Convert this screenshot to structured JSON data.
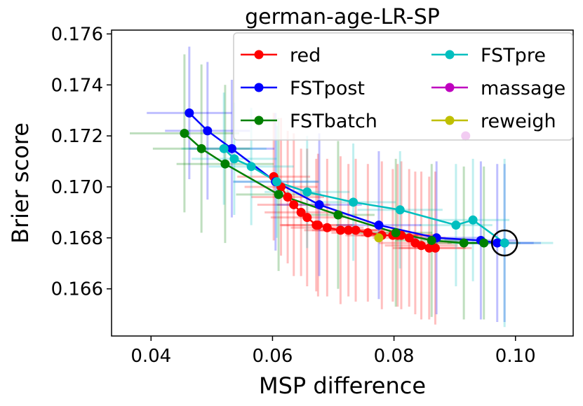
{
  "chart_data": {
    "type": "line",
    "title": "german-age-LR-SP",
    "xlabel": "MSP difference",
    "ylabel": "Brier score",
    "xlim": [
      0.0335,
      0.1095
    ],
    "ylim": [
      0.16415,
      0.17615
    ],
    "xticks": [
      0.04,
      0.06,
      0.08,
      0.1
    ],
    "xtick_labels": [
      "0.04",
      "0.06",
      "0.08",
      "0.10"
    ],
    "yticks": [
      0.166,
      0.168,
      0.17,
      0.172,
      0.174,
      0.176
    ],
    "ytick_labels": [
      "0.166",
      "0.168",
      "0.170",
      "0.172",
      "0.174",
      "0.176"
    ],
    "legend_position": "top-right",
    "series": [
      {
        "name": "red",
        "color": "#ff0000",
        "x": [
          0.0602,
          0.0614,
          0.0625,
          0.0635,
          0.0647,
          0.0657,
          0.0672,
          0.0675,
          0.069,
          0.0712,
          0.0725,
          0.0737,
          0.0757,
          0.078,
          0.0798,
          0.0806,
          0.0812,
          0.0825,
          0.0835,
          0.0845,
          0.0858,
          0.0868
        ],
        "y": [
          0.1704,
          0.17,
          0.1696,
          0.1693,
          0.169,
          0.1688,
          0.1685,
          0.1685,
          0.1684,
          0.1683,
          0.1683,
          0.1683,
          0.1682,
          0.1681,
          0.1681,
          0.1681,
          0.1681,
          0.168,
          0.1678,
          0.1677,
          0.1676,
          0.1676
        ],
        "xerr": [
          0.006,
          0.006,
          0.006,
          0.006,
          0.006,
          0.006,
          0.006,
          0.006,
          0.006,
          0.006,
          0.006,
          0.006,
          0.006,
          0.006,
          0.006,
          0.006,
          0.006,
          0.006,
          0.006,
          0.006,
          0.006,
          0.006
        ],
        "yerr": [
          0.0025,
          0.0027,
          0.0026,
          0.0028,
          0.0025,
          0.0027,
          0.0026,
          0.0028,
          0.0027,
          0.0029,
          0.0026,
          0.0028,
          0.0027,
          0.0029,
          0.0026,
          0.0028,
          0.0029,
          0.0027,
          0.0028,
          0.0029,
          0.0028,
          0.003
        ]
      },
      {
        "name": "FSTpost",
        "color": "#0000ff",
        "x": [
          0.0463,
          0.0493,
          0.0533,
          0.0605,
          0.0677,
          0.0775,
          0.087,
          0.0943,
          0.097,
          0.0982
        ],
        "y": [
          0.1729,
          0.1722,
          0.1715,
          0.1702,
          0.1693,
          0.1685,
          0.168,
          0.1679,
          0.1678,
          0.1678
        ],
        "xerr": [
          0.007,
          0.007,
          0.007,
          0.007,
          0.007,
          0.007,
          0.007,
          0.006,
          0.006,
          0.006
        ],
        "yerr": [
          0.0026,
          0.0027,
          0.0027,
          0.0027,
          0.0028,
          0.0029,
          0.003,
          0.0031,
          0.0031,
          0.0031
        ]
      },
      {
        "name": "FSTbatch",
        "color": "#008000",
        "x": [
          0.0455,
          0.0483,
          0.0522,
          0.061,
          0.0708,
          0.0803,
          0.0862,
          0.0915,
          0.0948
        ],
        "y": [
          0.1721,
          0.1715,
          0.1709,
          0.1697,
          0.1689,
          0.1682,
          0.1679,
          0.1678,
          0.1678
        ],
        "xerr": [
          0.009,
          0.008,
          0.008,
          0.007,
          0.006,
          0.006,
          0.006,
          0.006,
          0.006
        ],
        "yerr": [
          0.0031,
          0.0033,
          0.0031,
          0.003,
          0.0029,
          0.0029,
          0.003,
          0.003,
          0.003
        ]
      },
      {
        "name": "FSTpre",
        "color": "#00bfbf",
        "x": [
          0.052,
          0.0537,
          0.0565,
          0.0607,
          0.0657,
          0.0733,
          0.081,
          0.0902,
          0.093,
          0.0982
        ],
        "y": [
          0.1715,
          0.1711,
          0.1708,
          0.1702,
          0.1698,
          0.1694,
          0.1691,
          0.1685,
          0.1687,
          0.1678
        ],
        "xerr": [
          0.007,
          0.007,
          0.007,
          0.007,
          0.007,
          0.007,
          0.007,
          0.006,
          0.006,
          0.008
        ],
        "yerr": [
          0.0022,
          0.0022,
          0.0023,
          0.0022,
          0.0022,
          0.0023,
          0.0023,
          0.0024,
          0.0024,
          0.0033
        ]
      },
      {
        "name": "massage",
        "color": "#bf00bf",
        "x": [
          0.0918
        ],
        "y": [
          0.172
        ],
        "xerr": [
          0.0
        ],
        "yerr": [
          0.0
        ]
      },
      {
        "name": "reweigh",
        "color": "#bfbf00",
        "x": [
          0.0775
        ],
        "y": [
          0.168
        ],
        "xerr": [
          0.0
        ],
        "yerr": [
          0.0
        ]
      }
    ],
    "annotations": [
      {
        "type": "circle-marker",
        "x": 0.0982,
        "y": 0.1678
      }
    ]
  }
}
